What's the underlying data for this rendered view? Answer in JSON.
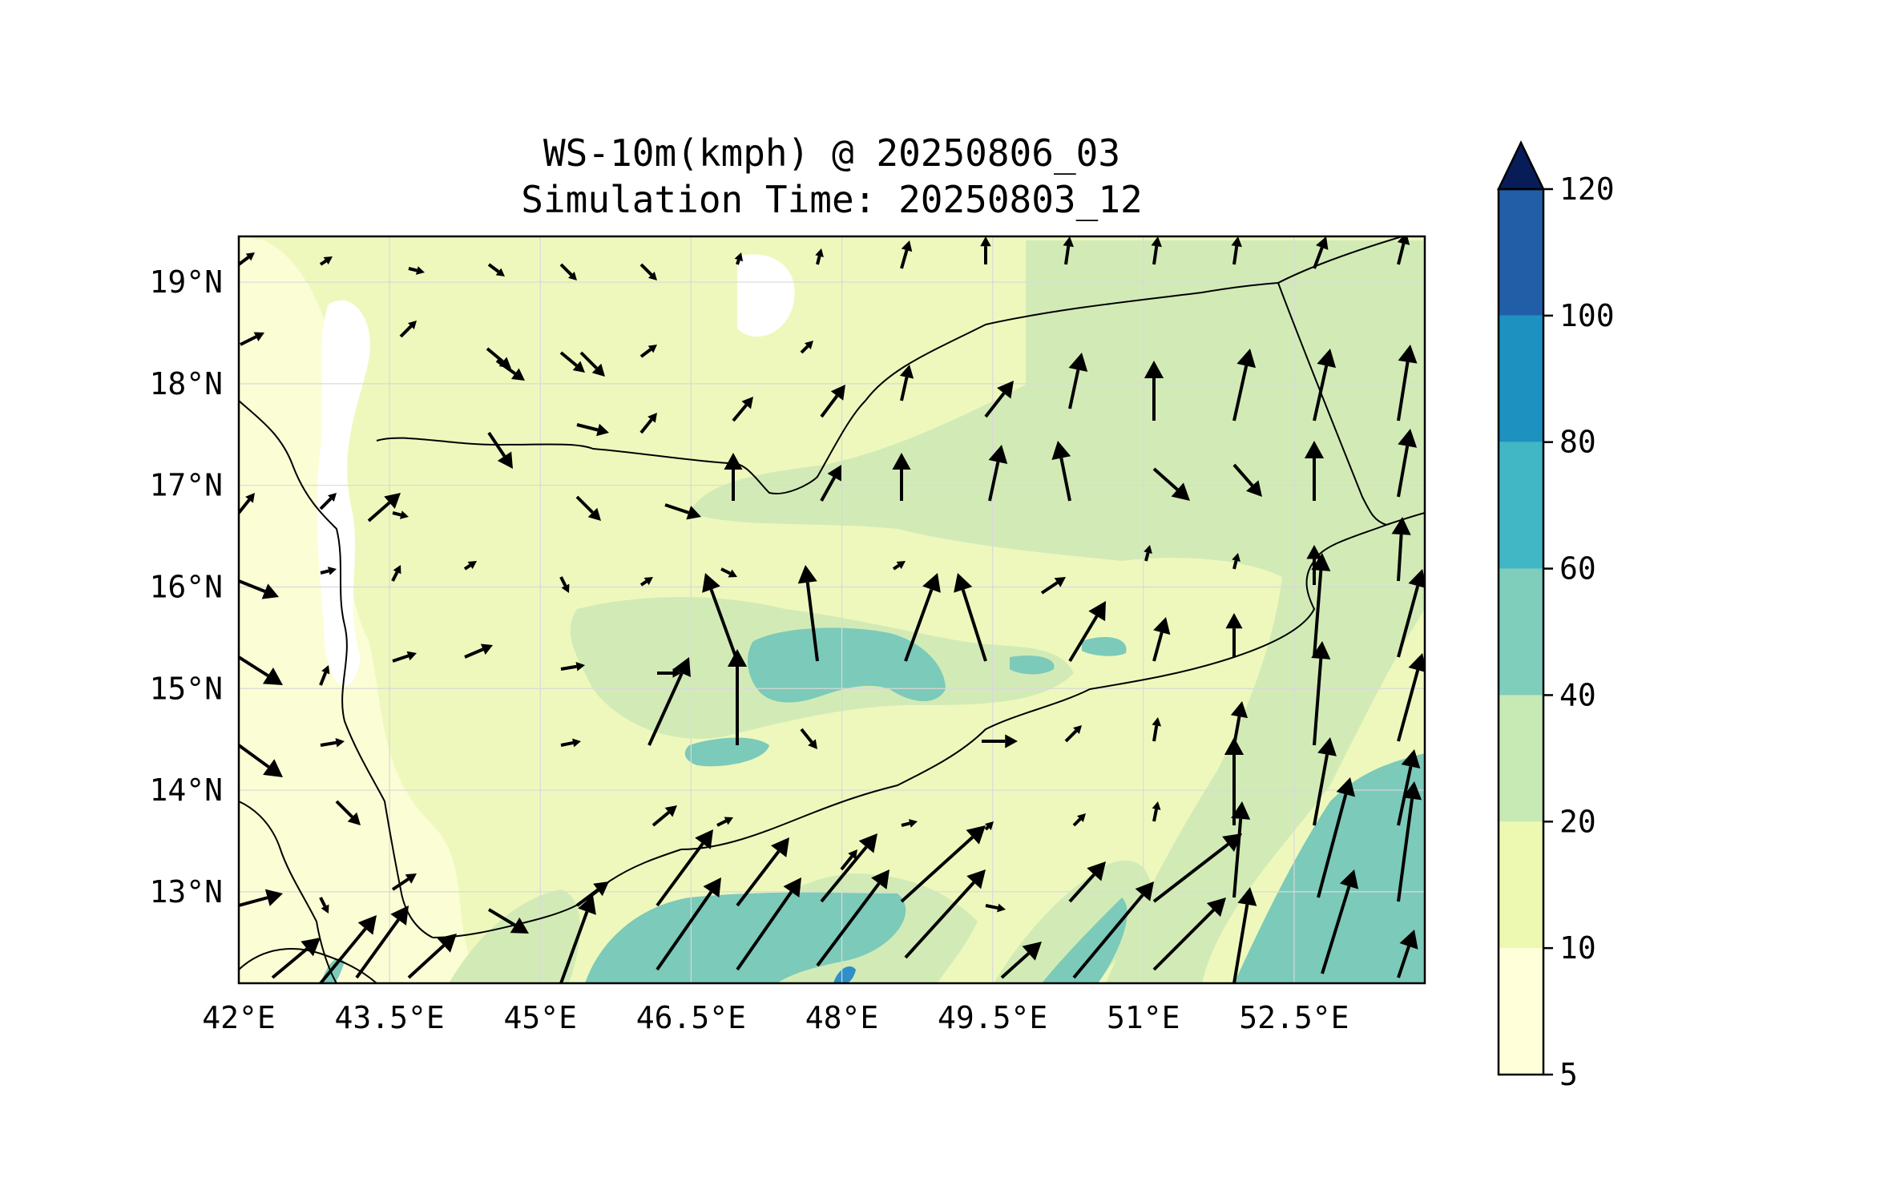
{
  "title": {
    "line1": "WS-10m(kmph) @ 20250806_03",
    "line2": "Simulation Time: 20250803_12"
  },
  "map": {
    "lon_range": [
      42.0,
      53.8
    ],
    "lat_range": [
      12.1,
      19.45
    ],
    "x_ticks": [
      {
        "value": 42.0,
        "label": "42°E"
      },
      {
        "value": 43.5,
        "label": "43.5°E"
      },
      {
        "value": 45.0,
        "label": "45°E"
      },
      {
        "value": 46.5,
        "label": "46.5°E"
      },
      {
        "value": 48.0,
        "label": "48°E"
      },
      {
        "value": 49.5,
        "label": "49.5°E"
      },
      {
        "value": 51.0,
        "label": "51°E"
      },
      {
        "value": 52.5,
        "label": "52.5°E"
      }
    ],
    "y_ticks": [
      {
        "value": 13,
        "label": "13°N"
      },
      {
        "value": 14,
        "label": "14°N"
      },
      {
        "value": 15,
        "label": "15°N"
      },
      {
        "value": 16,
        "label": "16°N"
      },
      {
        "value": 17,
        "label": "17°N"
      },
      {
        "value": 18,
        "label": "18°N"
      },
      {
        "value": 19,
        "label": "19°N"
      }
    ],
    "grid": true,
    "wind_vectors": "quiver arrows",
    "boundaries": "coastline and country borders"
  },
  "colorbar": {
    "levels": [
      5,
      10,
      20,
      40,
      60,
      80,
      100,
      120
    ],
    "labels": [
      "5",
      "10",
      "20",
      "40",
      "60",
      "80",
      "100",
      "120"
    ],
    "colors": [
      "#ffffd9",
      "#edf8b1",
      "#c7e9b4",
      "#7fcdbb",
      "#41b6c4",
      "#1d91c0",
      "#225ea8",
      "#253494"
    ],
    "extend_color": "#081d58",
    "extend": "max"
  },
  "colors": {
    "white": "#ffffff",
    "pale": "#fbfdd5",
    "light": "#eef8bd",
    "mid": "#d2ebb6",
    "teal": "#7ccab9",
    "blue": "#2f8fc7"
  }
}
